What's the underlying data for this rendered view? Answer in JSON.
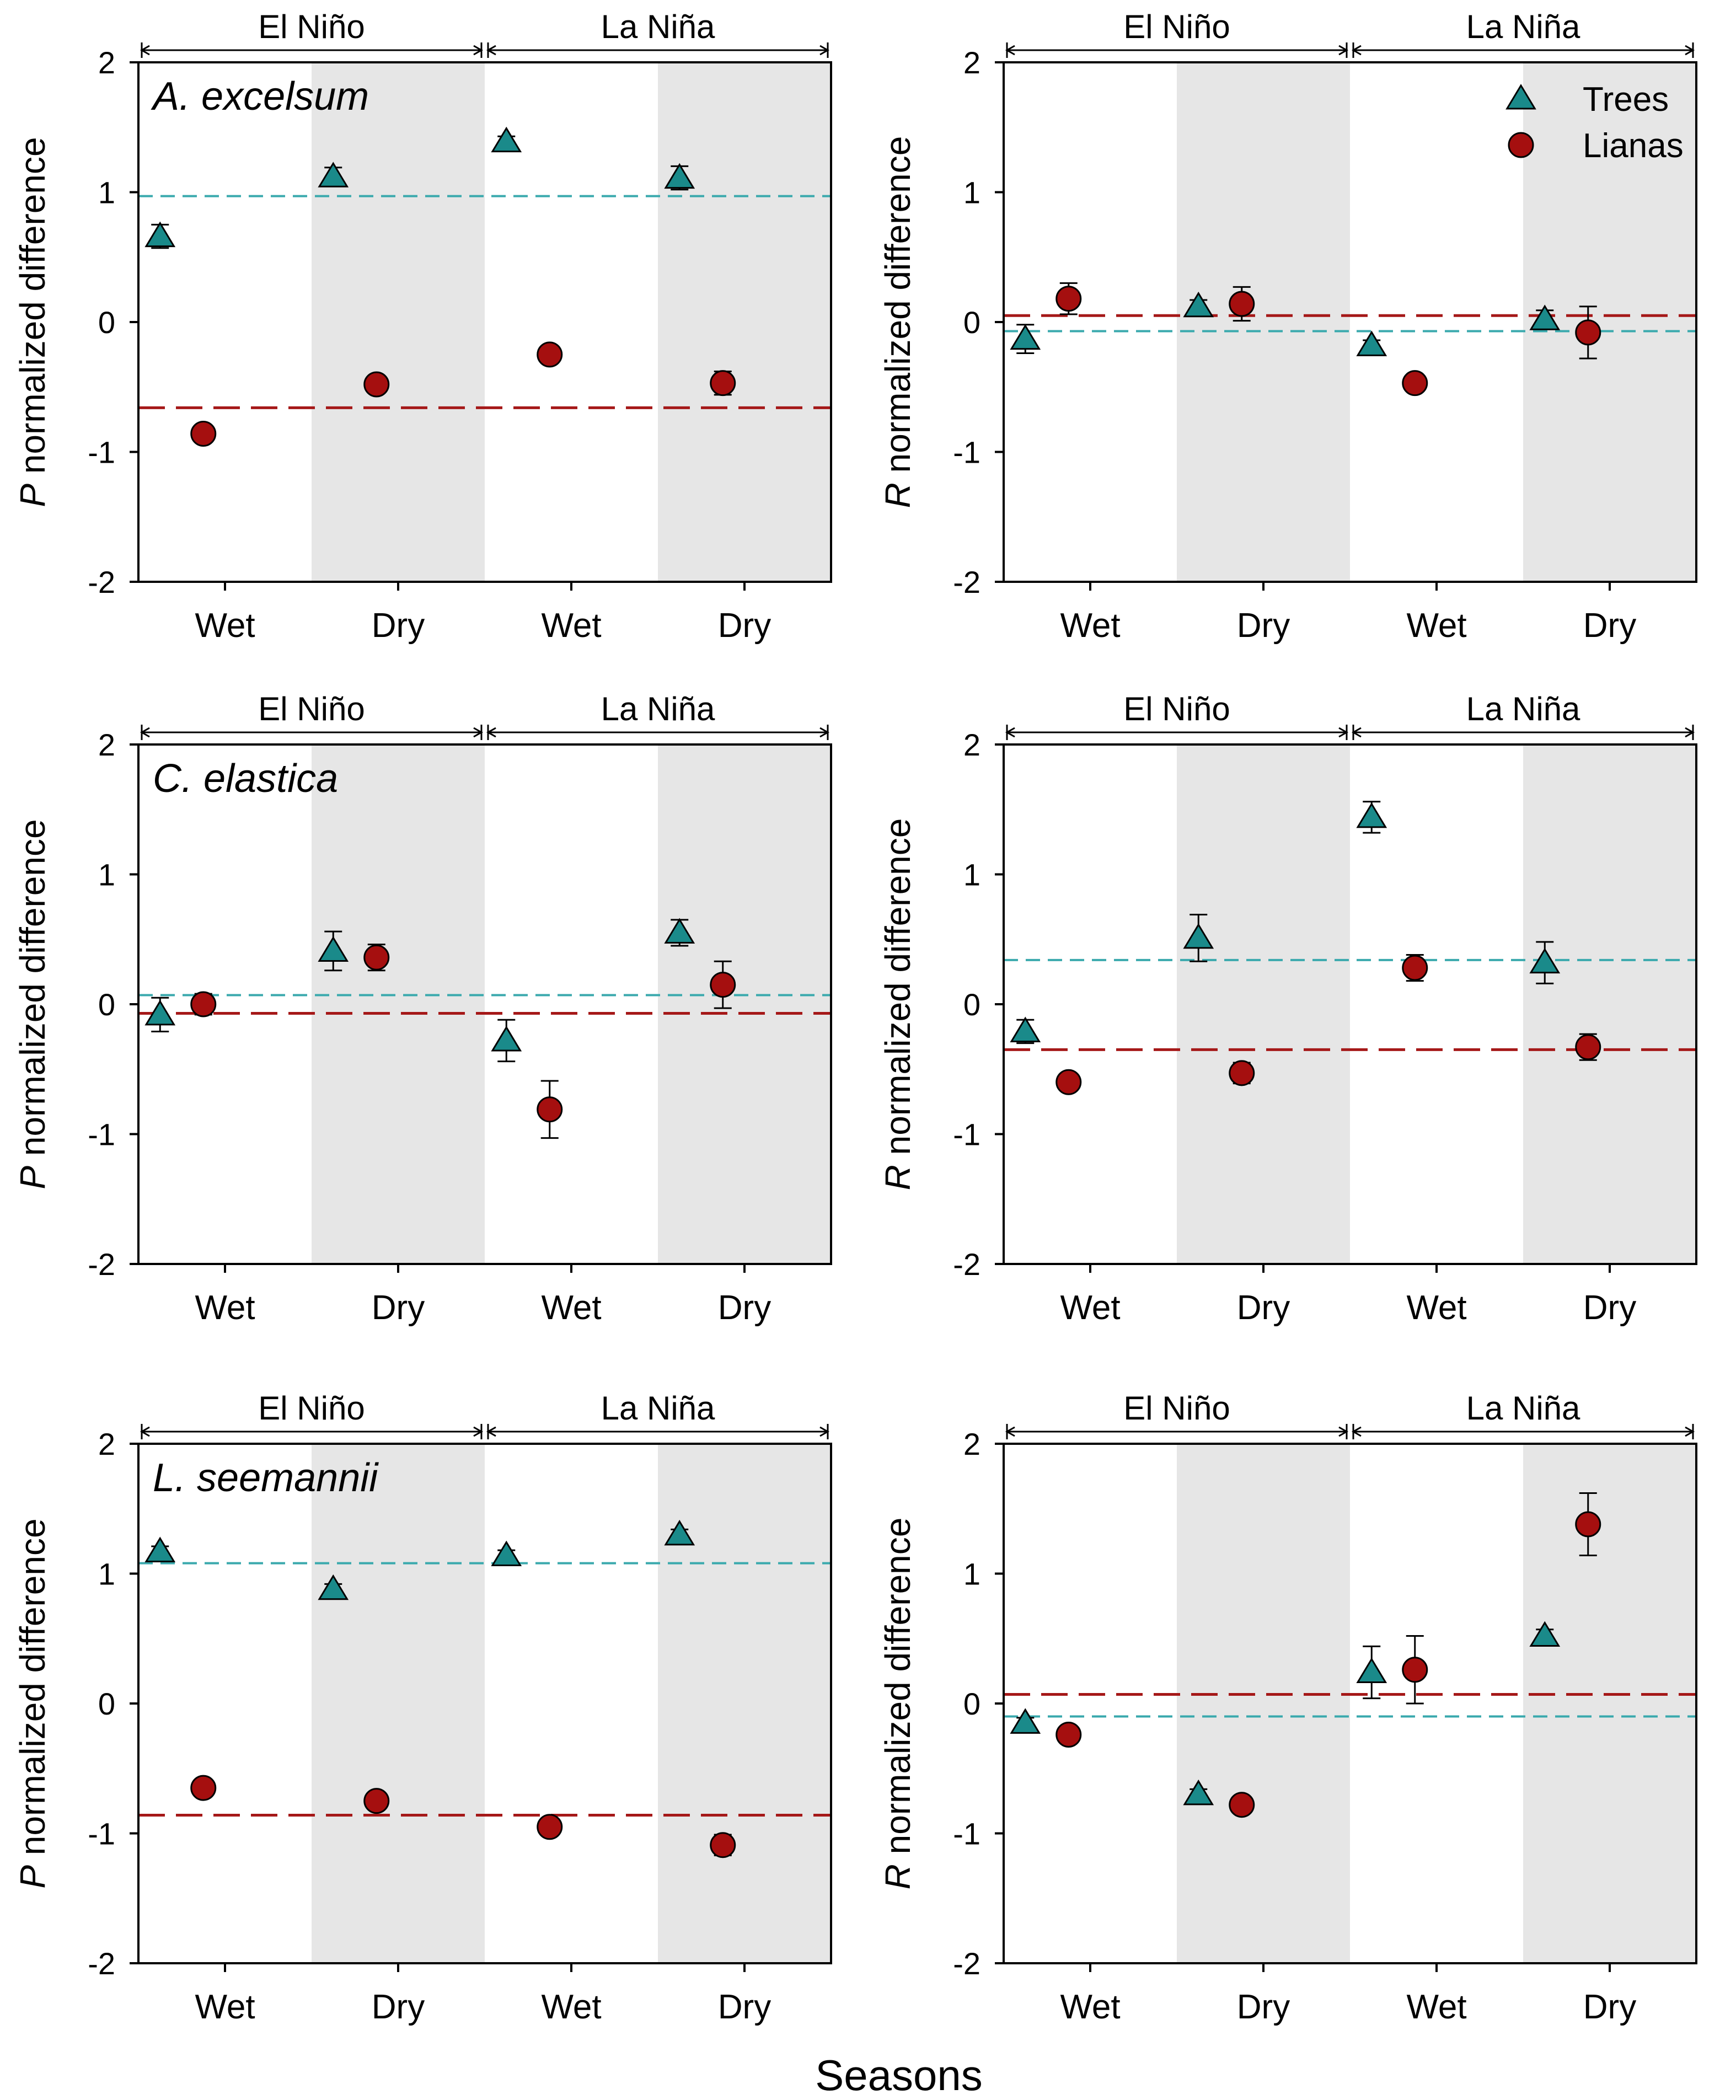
{
  "figure": {
    "x_label": "Seasons",
    "legend": [
      {
        "name": "Trees",
        "marker": "triangle",
        "color": "#1a8a8a"
      },
      {
        "name": "Lianas",
        "marker": "circle",
        "color": "#a50f0f"
      }
    ],
    "colors": {
      "trees": "#1a8a8a",
      "lianas": "#a50f0f",
      "dry_shading": "#e6e6e6",
      "trees_mean_line": "#3aa9ad",
      "lianas_mean_line": "#a51818"
    }
  },
  "chart_data": [
    {
      "type": "scatter",
      "panel": "A. excelsum P",
      "title": "A. excelsum",
      "ylabel_italic": "P",
      "ylabel_rest": " normalized difference",
      "ylim": [
        -2,
        2
      ],
      "yticks": [
        "2",
        "1",
        "0",
        "-1",
        "-2"
      ],
      "categories": [
        "Wet",
        "Dry",
        "Wet",
        "Dry"
      ],
      "phases": [
        "El Niño",
        "La Niña"
      ],
      "show_legend": false,
      "series": [
        {
          "name": "Trees",
          "values": [
            0.66,
            1.12,
            1.39,
            1.11
          ],
          "errors": [
            0.09,
            0.07,
            0.04,
            0.09
          ],
          "mean": 0.97
        },
        {
          "name": "Lianas",
          "values": [
            -0.86,
            -0.48,
            -0.25,
            -0.47
          ],
          "errors": [
            0.03,
            0.05,
            0.03,
            0.09
          ],
          "mean": -0.66
        }
      ]
    },
    {
      "type": "scatter",
      "panel": "A. excelsum R",
      "title": "",
      "ylabel_italic": "R",
      "ylabel_rest": " normalized difference",
      "ylim": [
        -2,
        2
      ],
      "yticks": [
        "2",
        "1",
        "0",
        "-1",
        "-2"
      ],
      "categories": [
        "Wet",
        "Dry",
        "Wet",
        "Dry"
      ],
      "phases": [
        "El Niño",
        "La Niña"
      ],
      "show_legend": true,
      "series": [
        {
          "name": "Trees",
          "values": [
            -0.13,
            0.12,
            -0.18,
            0.02
          ],
          "errors": [
            0.11,
            0.05,
            0.04,
            0.07
          ],
          "mean": -0.07
        },
        {
          "name": "Lianas",
          "values": [
            0.18,
            0.14,
            -0.47,
            -0.08
          ],
          "errors": [
            0.12,
            0.13,
            0.03,
            0.2
          ],
          "mean": 0.05
        }
      ]
    },
    {
      "type": "scatter",
      "panel": "C. elastica P",
      "title": "C. elastica",
      "ylabel_italic": "P",
      "ylabel_rest": " normalized difference",
      "ylim": [
        -2,
        2
      ],
      "yticks": [
        "2",
        "1",
        "0",
        "-1",
        "-2"
      ],
      "categories": [
        "Wet",
        "Dry",
        "Wet",
        "Dry"
      ],
      "phases": [
        "El Niño",
        "La Niña"
      ],
      "show_legend": false,
      "series": [
        {
          "name": "Trees",
          "values": [
            -0.08,
            0.41,
            -0.28,
            0.55
          ],
          "errors": [
            0.13,
            0.15,
            0.16,
            0.1
          ],
          "mean": 0.07
        },
        {
          "name": "Lianas",
          "values": [
            0.0,
            0.36,
            -0.81,
            0.15
          ],
          "errors": [
            0.08,
            0.1,
            0.22,
            0.18
          ],
          "mean": -0.07
        }
      ]
    },
    {
      "type": "scatter",
      "panel": "C. elastica R",
      "title": "",
      "ylabel_italic": "R",
      "ylabel_rest": " normalized difference",
      "ylim": [
        -2,
        2
      ],
      "yticks": [
        "2",
        "1",
        "0",
        "-1",
        "-2"
      ],
      "categories": [
        "Wet",
        "Dry",
        "Wet",
        "Dry"
      ],
      "phases": [
        "El Niño",
        "La Niña"
      ],
      "show_legend": false,
      "series": [
        {
          "name": "Trees",
          "values": [
            -0.21,
            0.51,
            1.44,
            0.32
          ],
          "errors": [
            0.09,
            0.18,
            0.12,
            0.16
          ],
          "mean": 0.34
        },
        {
          "name": "Lianas",
          "values": [
            -0.6,
            -0.53,
            0.28,
            -0.33
          ],
          "errors": [
            0.05,
            0.08,
            0.1,
            0.1
          ],
          "mean": -0.35
        }
      ]
    },
    {
      "type": "scatter",
      "panel": "L. seemannii P",
      "title": "L. seemannii",
      "ylabel_italic": "P",
      "ylabel_rest": " normalized difference",
      "ylim": [
        -2,
        2
      ],
      "yticks": [
        "2",
        "1",
        "0",
        "-1",
        "-2"
      ],
      "categories": [
        "Wet",
        "Dry",
        "Wet",
        "Dry"
      ],
      "phases": [
        "El Niño",
        "La Niña"
      ],
      "show_legend": false,
      "series": [
        {
          "name": "Trees",
          "values": [
            1.17,
            0.88,
            1.14,
            1.3
          ],
          "errors": [
            0.04,
            0.04,
            0.04,
            0.04
          ],
          "mean": 1.08
        },
        {
          "name": "Lianas",
          "values": [
            -0.65,
            -0.75,
            -0.95,
            -1.09
          ],
          "errors": [
            0.03,
            0.03,
            0.04,
            0.08
          ],
          "mean": -0.86
        }
      ]
    },
    {
      "type": "scatter",
      "panel": "L. seemannii R",
      "title": "",
      "ylabel_italic": "R",
      "ylabel_rest": " normalized difference",
      "ylim": [
        -2,
        2
      ],
      "yticks": [
        "2",
        "1",
        "0",
        "-1",
        "-2"
      ],
      "categories": [
        "Wet",
        "Dry",
        "Wet",
        "Dry"
      ],
      "phases": [
        "El Niño",
        "La Niña"
      ],
      "show_legend": false,
      "series": [
        {
          "name": "Trees",
          "values": [
            -0.15,
            -0.7,
            0.24,
            0.52
          ],
          "errors": [
            0.04,
            0.04,
            0.2,
            0.05
          ],
          "mean": -0.1
        },
        {
          "name": "Lianas",
          "values": [
            -0.24,
            -0.78,
            0.26,
            1.38
          ],
          "errors": [
            0.04,
            0.04,
            0.26,
            0.24
          ],
          "mean": 0.07
        }
      ]
    }
  ]
}
